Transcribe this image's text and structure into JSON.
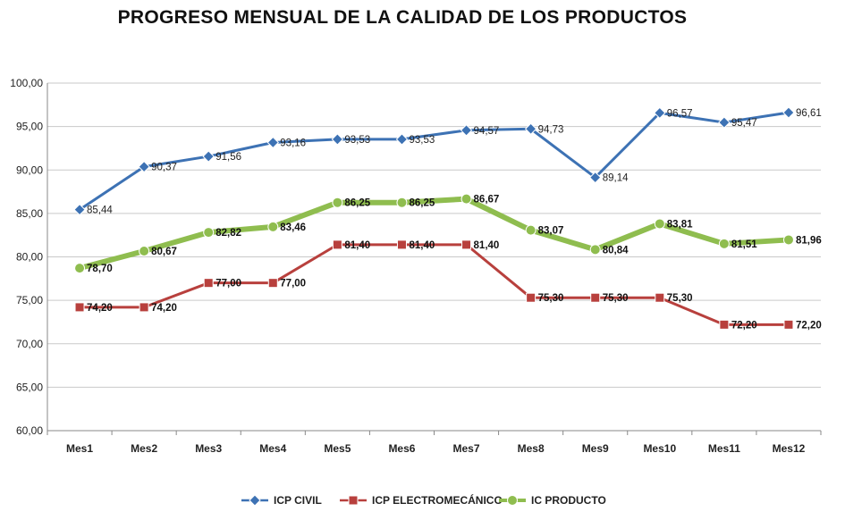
{
  "chart_data": {
    "type": "line",
    "title": "PROGRESO  MENSUAL DE LA CALIDAD DE LOS PRODUCTOS",
    "xlabel": "",
    "ylabel": "",
    "ylim": [
      60,
      100
    ],
    "yticks": [
      "60,00",
      "65,00",
      "70,00",
      "75,00",
      "80,00",
      "85,00",
      "90,00",
      "95,00",
      "100,00"
    ],
    "grid": true,
    "legend_position": "bottom",
    "categories": [
      "Mes1",
      "Mes2",
      "Mes3",
      "Mes4",
      "Mes5",
      "Mes6",
      "Mes7",
      "Mes8",
      "Mes9",
      "Mes10",
      "Mes11",
      "Mes12"
    ],
    "series": [
      {
        "name": "ICP CIVIL",
        "color": "#3d72b4",
        "marker": "diamond",
        "values": [
          85.44,
          90.37,
          91.56,
          93.16,
          93.53,
          93.53,
          94.57,
          94.73,
          89.14,
          96.57,
          95.47,
          96.61
        ],
        "labels": [
          "85,44",
          "90,37",
          "91,56",
          "93,16",
          "93,53",
          "93,53",
          "94,57",
          "94,73",
          "89,14",
          "96,57",
          "95,47",
          "96,61"
        ]
      },
      {
        "name": "ICP ELECTROMECÁNICO",
        "color": "#b8403d",
        "marker": "square",
        "values": [
          74.2,
          74.2,
          77.0,
          77.0,
          81.4,
          81.4,
          81.4,
          75.3,
          75.3,
          75.3,
          72.2,
          72.2
        ],
        "labels": [
          "74,20",
          "74,20",
          "77,00",
          "77,00",
          "81,40",
          "81,40",
          "81,40",
          "75,30",
          "75,30",
          "75,30",
          "72,20",
          "72,20"
        ]
      },
      {
        "name": "IC PRODUCTO",
        "color": "#8fbd4f",
        "marker": "circle",
        "values": [
          78.7,
          80.67,
          82.82,
          83.46,
          86.25,
          86.25,
          86.67,
          83.07,
          80.84,
          83.81,
          81.51,
          81.96
        ],
        "labels": [
          "78,70",
          "80,67",
          "82,82",
          "83,46",
          "86,25",
          "86,25",
          "86,67",
          "83,07",
          "80,84",
          "83,81",
          "81,51",
          "81,96"
        ]
      }
    ]
  }
}
